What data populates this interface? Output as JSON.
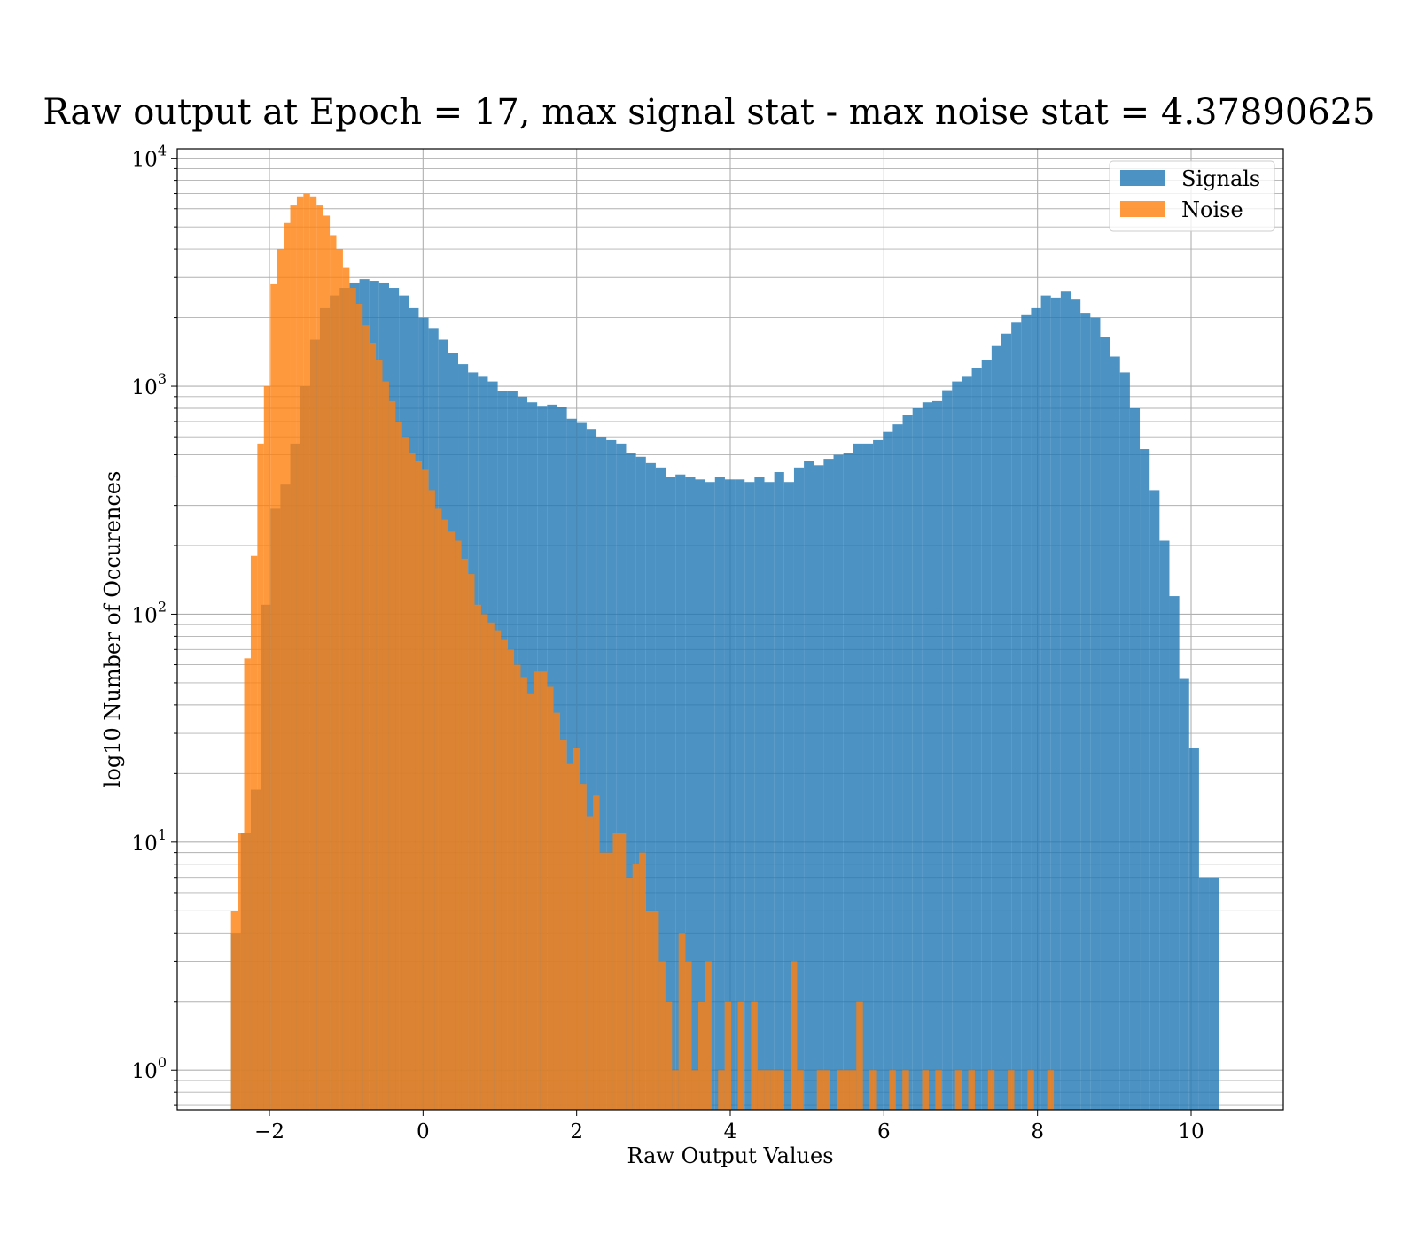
{
  "chart_data": {
    "type": "bar",
    "title": "Raw output at Epoch = 17, max signal stat - max noise stat = 4.37890625",
    "xlabel": "Raw Output Values",
    "ylabel": "log10 Number of Occurences",
    "xlim": [
      -3.2,
      11.2
    ],
    "ylim": [
      0.67,
      11000
    ],
    "yscale": "log",
    "grid": true,
    "legend_position": "top-right",
    "x_ticks": [
      -2,
      0,
      2,
      4,
      6,
      8,
      10
    ],
    "x_tick_labels": [
      "−2",
      "0",
      "2",
      "4",
      "6",
      "8",
      "10"
    ],
    "y_ticks": [
      1,
      10,
      100,
      1000,
      10000
    ],
    "y_tick_labels": [
      {
        "base": "10",
        "exp": "0"
      },
      {
        "base": "10",
        "exp": "1"
      },
      {
        "base": "10",
        "exp": "2"
      },
      {
        "base": "10",
        "exp": "3"
      },
      {
        "base": "10",
        "exp": "4"
      }
    ],
    "series": [
      {
        "name": "Signals",
        "color": "#1f77b4",
        "opacity": 0.8,
        "bin_start": -2.5,
        "bin_width": 0.1286,
        "values": [
          4,
          11,
          17,
          110,
          290,
          370,
          560,
          1000,
          1600,
          2200,
          2500,
          2700,
          2850,
          2950,
          2900,
          2850,
          2700,
          2500,
          2200,
          2000,
          1800,
          1600,
          1400,
          1250,
          1150,
          1100,
          1050,
          950,
          950,
          900,
          850,
          820,
          830,
          810,
          720,
          690,
          650,
          600,
          580,
          560,
          510,
          490,
          460,
          440,
          400,
          410,
          400,
          390,
          380,
          400,
          390,
          390,
          380,
          400,
          380,
          420,
          380,
          440,
          470,
          450,
          480,
          500,
          510,
          560,
          560,
          580,
          630,
          680,
          750,
          800,
          850,
          860,
          960,
          1050,
          1100,
          1200,
          1300,
          1500,
          1700,
          1900,
          2050,
          2200,
          2500,
          2450,
          2600,
          2400,
          2100,
          2000,
          1650,
          1350,
          1150,
          800,
          530,
          350,
          210,
          120,
          52,
          26,
          7,
          7
        ]
      },
      {
        "name": "Noise",
        "color": "#ff7f0e",
        "opacity": 0.8,
        "bin_start": -2.5,
        "bin_width": 0.0857,
        "values": [
          5,
          11,
          64,
          180,
          560,
          1000,
          2800,
          4000,
          5200,
          6200,
          6800,
          7000,
          6800,
          6200,
          5600,
          4600,
          4000,
          3300,
          2700,
          2300,
          1850,
          1550,
          1300,
          1050,
          860,
          700,
          600,
          510,
          470,
          430,
          350,
          290,
          260,
          230,
          210,
          175,
          150,
          110,
          100,
          92,
          85,
          77,
          70,
          60,
          53,
          45,
          56,
          56,
          48,
          37,
          28,
          22,
          26,
          18,
          13,
          16,
          9,
          9,
          11,
          11,
          7,
          8,
          9,
          5,
          5,
          3,
          2,
          1,
          4,
          3,
          1,
          2,
          3,
          0.5,
          1,
          2,
          0.5,
          2,
          0.5,
          2,
          1,
          1,
          1,
          1,
          0.5,
          3,
          1,
          0.5,
          0.5,
          1,
          1,
          0.5,
          1,
          1,
          1,
          2,
          0.5,
          1,
          0.5,
          0.5,
          1,
          0.5,
          1,
          0.5,
          0.5,
          1,
          0.5,
          1,
          0.5,
          0.5,
          1,
          0.5,
          1,
          0.5,
          0.5,
          1,
          0.5,
          0.5,
          1,
          0.5,
          0.5,
          1,
          0.5,
          0.5,
          1,
          0.5,
          0.5,
          0.5,
          0.5,
          0.5,
          0.5,
          0.5,
          0.5,
          0.5,
          0.5,
          0.5,
          0.5,
          0.5,
          0.5,
          0.5,
          0.5,
          0.5,
          0.5,
          0.5,
          0.5,
          0.5,
          0.5,
          0.5,
          0.5,
          0.5,
          0.5,
          0.5,
          0.5,
          0.5,
          0.5,
          0.5,
          0.5,
          0.5,
          0.5,
          0.5,
          0.5,
          0.5,
          0.5,
          0.5,
          0.5,
          0.5,
          0.5,
          0.5
        ]
      }
    ]
  }
}
